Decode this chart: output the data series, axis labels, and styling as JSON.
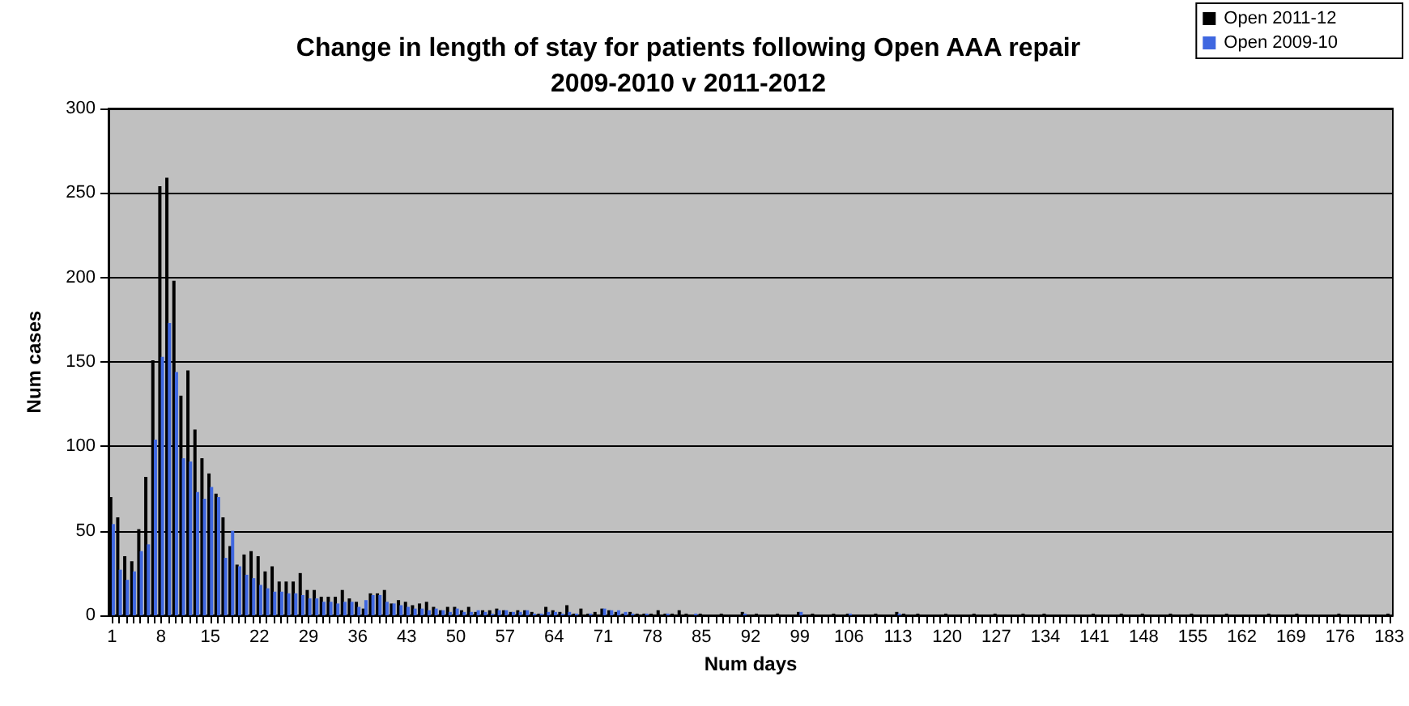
{
  "chart_data": {
    "type": "bar",
    "title": "Change in length of stay for patients following Open AAA repair\n2009-2010 v 2011-2012",
    "xlabel": "Num days",
    "ylabel": "Num cases",
    "categories": [
      "1",
      null,
      null,
      null,
      null,
      null,
      null,
      "8",
      null,
      null,
      null,
      null,
      null,
      null,
      "15",
      null,
      null,
      null,
      null,
      null,
      null,
      "22",
      null,
      null,
      null,
      null,
      null,
      null,
      "29",
      null,
      null,
      null,
      null,
      null,
      null,
      "36",
      null,
      null,
      null,
      null,
      null,
      null,
      "43",
      null,
      null,
      null,
      null,
      null,
      null,
      "50",
      null,
      null,
      null,
      null,
      null,
      null,
      "57",
      null,
      null,
      null,
      null,
      null,
      null,
      "64",
      null,
      null,
      null,
      null,
      null,
      null,
      "71",
      null,
      null,
      null,
      null,
      null,
      null,
      "78",
      null,
      null,
      null,
      null,
      null,
      null,
      "85",
      null,
      null,
      null,
      null,
      null,
      null,
      "92",
      null,
      null,
      null,
      null,
      null,
      null,
      "99",
      null,
      null,
      null,
      null,
      null,
      null,
      "106",
      null,
      null,
      null,
      null,
      null,
      null,
      "113",
      null,
      null,
      null,
      null,
      null,
      null,
      "120",
      null,
      null,
      null,
      null,
      null,
      null,
      "127",
      null,
      null,
      null,
      null,
      null,
      null,
      "134",
      null,
      null,
      null,
      null,
      null,
      null,
      "141",
      null,
      null,
      null,
      null,
      null,
      null,
      "148",
      null,
      null,
      null,
      null,
      null,
      null,
      "155",
      null,
      null,
      null,
      null,
      null,
      null,
      "162",
      null,
      null,
      null,
      null,
      null,
      null,
      "169",
      null,
      null,
      null,
      null,
      null,
      null,
      "176",
      null,
      null,
      null,
      null,
      null,
      null,
      "183"
    ],
    "series": [
      {
        "name": "Open 2011-12",
        "color": "#000000",
        "values": [
          70,
          58,
          35,
          32,
          51,
          82,
          151,
          254,
          259,
          198,
          130,
          145,
          110,
          93,
          84,
          72,
          58,
          41,
          30,
          36,
          38,
          35,
          26,
          29,
          20,
          20,
          20,
          25,
          15,
          15,
          11,
          11,
          11,
          15,
          10,
          8,
          4,
          13,
          13,
          15,
          7,
          9,
          8,
          6,
          7,
          8,
          5,
          3,
          5,
          5,
          3,
          5,
          2,
          3,
          3,
          4,
          3,
          2,
          3,
          3,
          2,
          1,
          5,
          3,
          2,
          6,
          1,
          4,
          1,
          2,
          4,
          3,
          2,
          1,
          2,
          1,
          1,
          1,
          3,
          1,
          1,
          3,
          1,
          0,
          1,
          0,
          0,
          1,
          0,
          0,
          2,
          0,
          1,
          0,
          0,
          1,
          0,
          0,
          2,
          0,
          1,
          0,
          0,
          1,
          0,
          1,
          0,
          0,
          0,
          1,
          0,
          0,
          2,
          1,
          0,
          1,
          0,
          0,
          0,
          1,
          0,
          0,
          0,
          1,
          0,
          0,
          1,
          0,
          0,
          0,
          1,
          0,
          0,
          1,
          0,
          0,
          0,
          0,
          0,
          0,
          1,
          0,
          0,
          0,
          1,
          0,
          0,
          1,
          0,
          0,
          0,
          1,
          0,
          0,
          1,
          0,
          0,
          0,
          0,
          1,
          0,
          0,
          0,
          0,
          0,
          1,
          0,
          0,
          0,
          1,
          0,
          0,
          0,
          0,
          0,
          1,
          0,
          0,
          0,
          0,
          0,
          0,
          1
        ]
      },
      {
        "name": "Open 2009-10",
        "color": "#3f67e0",
        "values": [
          54,
          27,
          21,
          26,
          38,
          42,
          104,
          153,
          173,
          144,
          93,
          91,
          73,
          69,
          76,
          70,
          34,
          50,
          29,
          24,
          22,
          18,
          16,
          14,
          14,
          13,
          13,
          12,
          10,
          10,
          8,
          8,
          7,
          8,
          8,
          5,
          9,
          12,
          12,
          8,
          7,
          6,
          5,
          4,
          4,
          3,
          4,
          3,
          2,
          4,
          2,
          2,
          3,
          2,
          1,
          3,
          3,
          2,
          2,
          3,
          1,
          1,
          2,
          2,
          1,
          2,
          1,
          0,
          1,
          0,
          4,
          3,
          3,
          2,
          1,
          0,
          1,
          0,
          0,
          1,
          0,
          0,
          0,
          1,
          0,
          0,
          0,
          0,
          0,
          0,
          1,
          0,
          0,
          0,
          0,
          0,
          0,
          0,
          2,
          0,
          0,
          0,
          0,
          0,
          0,
          1,
          0,
          0,
          0,
          0,
          0,
          0,
          1,
          0,
          0,
          0,
          0,
          0,
          0,
          0,
          0,
          0,
          0,
          0,
          0,
          0,
          0,
          0,
          0,
          0,
          0,
          0,
          0,
          0,
          0,
          0,
          0,
          0,
          0,
          0,
          0,
          0,
          0,
          0,
          0,
          0,
          0,
          0,
          0,
          0,
          0,
          0,
          0,
          0,
          0,
          0,
          0,
          0,
          0,
          0,
          0,
          0,
          0,
          0,
          0,
          0,
          0,
          0,
          0,
          0,
          0,
          0,
          0,
          0,
          0,
          0,
          0,
          0,
          0,
          0,
          0,
          0,
          0
        ]
      }
    ],
    "ylim": [
      0,
      300
    ],
    "yticks": [
      0,
      50,
      100,
      150,
      200,
      250,
      300
    ],
    "grid": "y",
    "legend": "top right"
  }
}
